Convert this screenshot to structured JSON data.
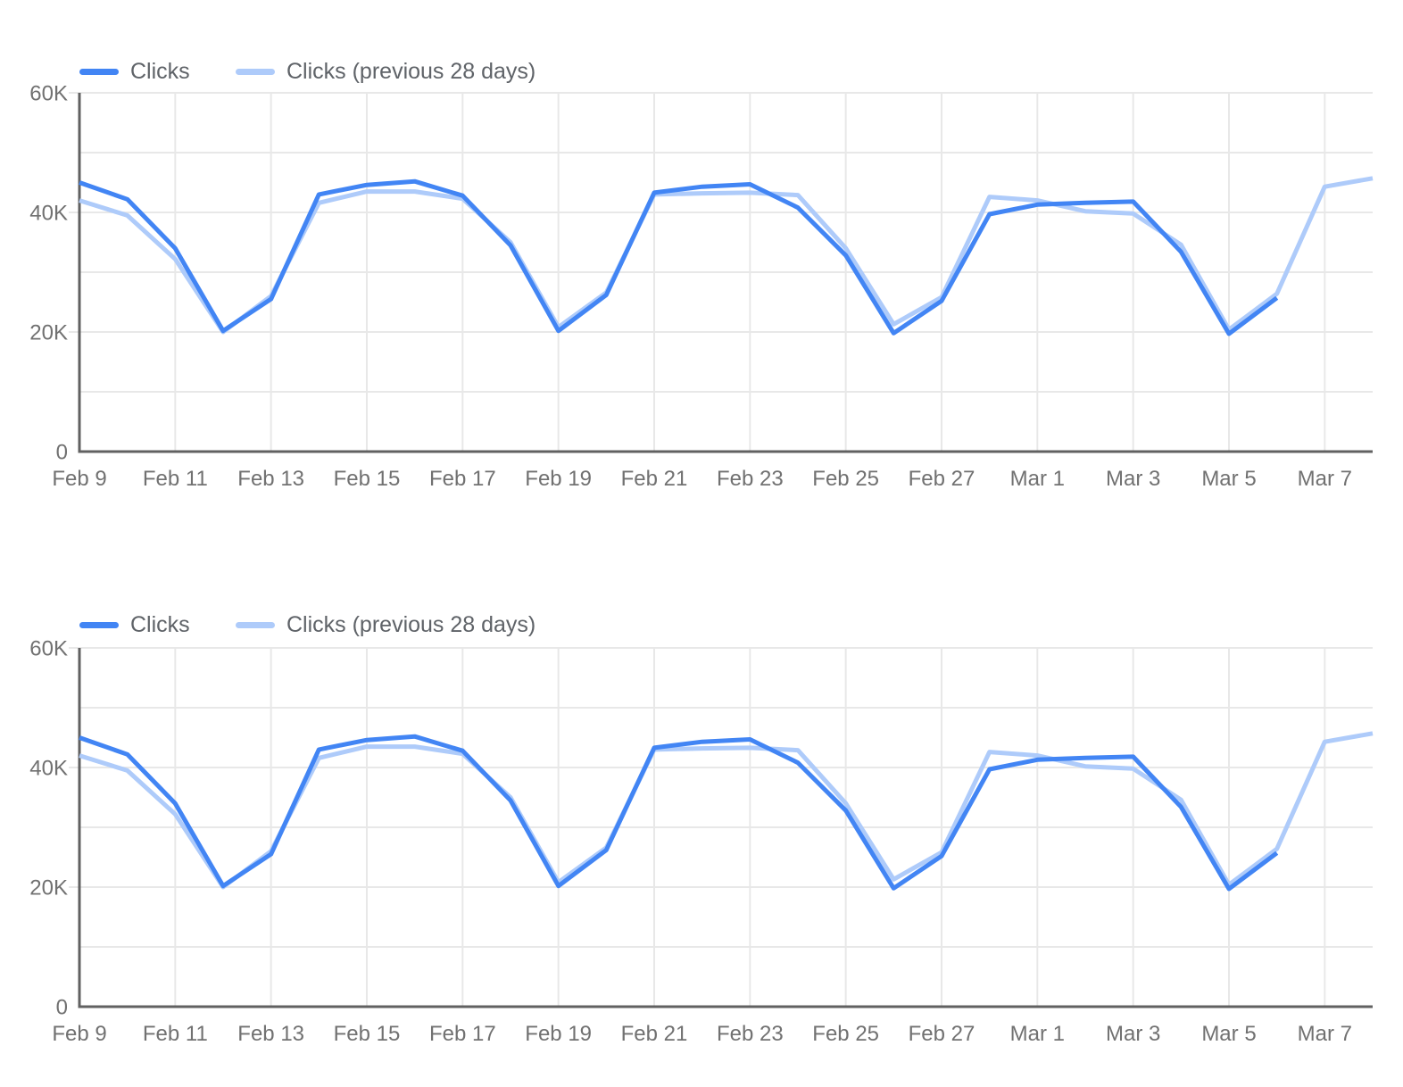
{
  "page": {
    "background_color": "#ffffff"
  },
  "theme": {
    "series_primary_color": "#4285f4",
    "series_comparison_color": "#aecbfa",
    "grid_color": "#e8e8e8",
    "axis_color": "#616161",
    "tick_label_color": "#717171",
    "legend_text_color": "#5f6368"
  },
  "chart_data": [
    {
      "type": "line",
      "title": "",
      "xlabel": "",
      "ylabel": "",
      "value_unit": "thousands",
      "ylim": [
        0,
        60
      ],
      "grid": true,
      "legend_position": "top-left",
      "y_ticks": [
        {
          "value": 0,
          "label": "0"
        },
        {
          "value": 20,
          "label": "20K"
        },
        {
          "value": 40,
          "label": "40K"
        },
        {
          "value": 60,
          "label": "60K"
        }
      ],
      "x": [
        "Feb 9",
        "Feb 10",
        "Feb 11",
        "Feb 12",
        "Feb 13",
        "Feb 14",
        "Feb 15",
        "Feb 16",
        "Feb 17",
        "Feb 18",
        "Feb 19",
        "Feb 20",
        "Feb 21",
        "Feb 22",
        "Feb 23",
        "Feb 24",
        "Feb 25",
        "Feb 26",
        "Feb 27",
        "Feb 28",
        "Mar 1",
        "Mar 2",
        "Mar 3",
        "Mar 4",
        "Mar 5",
        "Mar 6",
        "Mar 7",
        "Mar 8"
      ],
      "x_tick_labels": [
        "Feb 9",
        "Feb 11",
        "Feb 13",
        "Feb 15",
        "Feb 17",
        "Feb 19",
        "Feb 21",
        "Feb 23",
        "Feb 25",
        "Feb 27",
        "Mar 1",
        "Mar 3",
        "Mar 5",
        "Mar 7"
      ],
      "series": [
        {
          "name": "Clicks",
          "color": "#4285f4",
          "values_thousands": [
            45.0,
            42.2,
            34.0,
            20.2,
            25.5,
            43.0,
            44.6,
            45.2,
            42.8,
            34.5,
            20.2,
            26.2,
            43.3,
            44.3,
            44.7,
            40.8,
            32.8,
            19.8,
            25.2,
            39.7,
            41.3,
            41.6,
            41.8,
            33.4,
            19.7,
            25.7,
            null,
            null
          ]
        },
        {
          "name": "Clicks (previous 28 days)",
          "color": "#aecbfa",
          "values_thousands": [
            42.0,
            39.5,
            32.2,
            20.0,
            26.0,
            41.6,
            43.5,
            43.5,
            42.3,
            35.0,
            20.8,
            26.6,
            43.0,
            43.2,
            43.3,
            42.9,
            34.0,
            21.3,
            25.8,
            42.6,
            42.0,
            40.2,
            39.8,
            34.6,
            20.4,
            26.4,
            44.3,
            45.7
          ]
        }
      ]
    },
    {
      "type": "line",
      "title": "",
      "xlabel": "",
      "ylabel": "",
      "value_unit": "thousands",
      "ylim": [
        0,
        60
      ],
      "grid": true,
      "legend_position": "top-left",
      "y_ticks": [
        {
          "value": 0,
          "label": "0"
        },
        {
          "value": 20,
          "label": "20K"
        },
        {
          "value": 40,
          "label": "40K"
        },
        {
          "value": 60,
          "label": "60K"
        }
      ],
      "x": [
        "Feb 9",
        "Feb 10",
        "Feb 11",
        "Feb 12",
        "Feb 13",
        "Feb 14",
        "Feb 15",
        "Feb 16",
        "Feb 17",
        "Feb 18",
        "Feb 19",
        "Feb 20",
        "Feb 21",
        "Feb 22",
        "Feb 23",
        "Feb 24",
        "Feb 25",
        "Feb 26",
        "Feb 27",
        "Feb 28",
        "Mar 1",
        "Mar 2",
        "Mar 3",
        "Mar 4",
        "Mar 5",
        "Mar 6",
        "Mar 7",
        "Mar 8"
      ],
      "x_tick_labels": [
        "Feb 9",
        "Feb 11",
        "Feb 13",
        "Feb 15",
        "Feb 17",
        "Feb 19",
        "Feb 21",
        "Feb 23",
        "Feb 25",
        "Feb 27",
        "Mar 1",
        "Mar 3",
        "Mar 5",
        "Mar 7"
      ],
      "series": [
        {
          "name": "Clicks",
          "color": "#4285f4",
          "values_thousands": [
            45.0,
            42.2,
            34.0,
            20.2,
            25.5,
            43.0,
            44.6,
            45.2,
            42.8,
            34.5,
            20.2,
            26.2,
            43.3,
            44.3,
            44.7,
            40.8,
            32.8,
            19.8,
            25.2,
            39.7,
            41.3,
            41.6,
            41.8,
            33.4,
            19.7,
            25.7,
            null,
            null
          ]
        },
        {
          "name": "Clicks (previous 28 days)",
          "color": "#aecbfa",
          "values_thousands": [
            42.0,
            39.5,
            32.2,
            20.0,
            26.0,
            41.6,
            43.5,
            43.5,
            42.3,
            35.0,
            20.8,
            26.6,
            43.0,
            43.2,
            43.3,
            42.9,
            34.0,
            21.3,
            25.8,
            42.6,
            42.0,
            40.2,
            39.8,
            34.6,
            20.4,
            26.4,
            44.3,
            45.7
          ]
        }
      ]
    }
  ]
}
